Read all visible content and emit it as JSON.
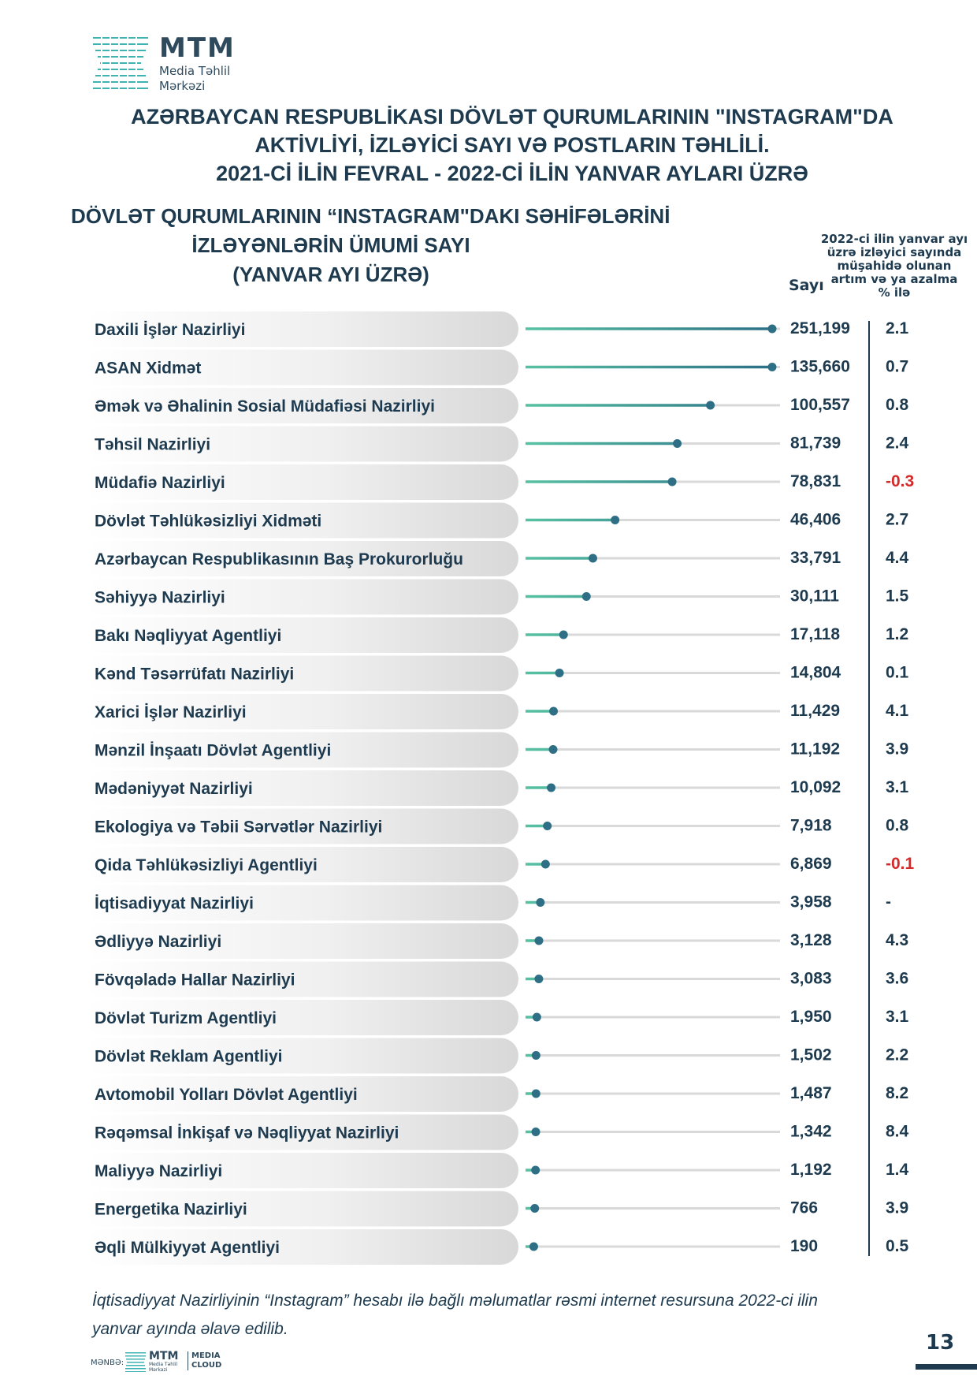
{
  "logo": {
    "title": "MTM",
    "subtitle_line1": "Media Təhlil",
    "subtitle_line2": "Mərkəzi"
  },
  "title": {
    "line1": "AZƏRBAYCAN RESPUBLİKASI DÖVLƏT QURUMLARININ \"INSTAGRAM\"DA",
    "line2": "AKTİVLİYİ, İZLƏYİCİ SAYI VƏ POSTLARIN TƏHLİLİ.",
    "line3": "2021-Cİ İLİN FEVRAL - 2022-Cİ İLİN YANVAR AYLARI ÜZRƏ"
  },
  "subtitle": {
    "line1": "DÖVLƏT QURUMLARININ “INSTAGRAM\"DAKI SƏHİFƏLƏRİNİ",
    "line2": "İZLƏYƏNLƏRİN ÜMUMİ SAYI",
    "line3": "(YANVAR AYI ÜZRƏ)"
  },
  "columns": {
    "count": "Sayı",
    "change_line1": "2022-ci ilin yanvar ayı",
    "change_line2": "üzrə izləyici sayında",
    "change_line3": "müşahidə olunan",
    "change_line4": "artım və ya azalma",
    "change_line5": "% ilə"
  },
  "chart_data": {
    "type": "bar",
    "categories": [
      "Daxili İşlər Nazirliyi",
      "ASAN Xidmət",
      "Əmək və Əhalinin Sosial Müdafiəsi Nazirliyi",
      "Təhsil Nazirliyi",
      "Müdafiə Nazirliyi",
      "Dövlət Təhlükəsizliyi Xidməti",
      "Azərbaycan Respublikasının Baş Prokurorluğu",
      "Səhiyyə Nazirliyi",
      "Bakı Nəqliyyat Agentliyi",
      "Kənd Təsərrüfatı Nazirliyi",
      "Xarici İşlər Nazirliyi",
      "Mənzil İnşaatı Dövlət Agentliyi",
      "Mədəniyyət Nazirliyi",
      "Ekologiya və Təbii Sərvətlər Nazirliyi",
      "Qida Təhlükəsizliyi Agentliyi",
      "İqtisadiyyat Nazirliyi",
      "Ədliyyə Nazirliyi",
      "Fövqəladə Hallar Nazirliyi",
      "Dövlət Turizm Agentliyi",
      "Dövlət Reklam Agentliyi",
      "Avtomobil Yolları Dövlət Agentliyi",
      "Rəqəmsal İnkişaf və Nəqliyyat Nazirliyi",
      "Maliyyə Nazirliyi",
      "Energetika Nazirliyi",
      "Əqli Mülkiyyət Agentliyi"
    ],
    "values": [
      251199,
      135660,
      100557,
      81739,
      78831,
      46406,
      33791,
      30111,
      17118,
      14804,
      11429,
      11192,
      10092,
      7918,
      6869,
      3958,
      3128,
      3083,
      1950,
      1502,
      1487,
      1342,
      1192,
      766,
      190
    ],
    "value_labels": [
      "251,199",
      "135,660",
      "100,557",
      "81,739",
      "78,831",
      "46,406",
      "33,791",
      "30,111",
      "17,118",
      "14,804",
      "11,429",
      "11,192",
      "10,092",
      "7,918",
      "6,869",
      "3,958",
      "3,128",
      "3,083",
      "1,950",
      "1,502",
      "1,487",
      "1,342",
      "1,192",
      "766",
      "190"
    ],
    "change_labels": [
      "2.1",
      "0.7",
      "0.8",
      "2.4",
      "-0.3",
      "2.7",
      "4.4",
      "1.5",
      "1.2",
      "0.1",
      "4.1",
      "3.9",
      "3.1",
      "0.8",
      "-0.1",
      "-",
      "4.3",
      "3.6",
      "3.1",
      "2.2",
      "8.2",
      "8.4",
      "1.4",
      "3.9",
      "0.5"
    ],
    "style": "lollipop",
    "colors": {
      "line_start": "#57c1a2",
      "line_end": "#2c6f86",
      "dot": "#2e6f85",
      "track": "#d9d9d9",
      "negative": "#d42a2a",
      "text": "#1d3a4f"
    }
  },
  "note": {
    "line1": "İqtisadiyyat Nazirliyinin “Instagram” hesabı ilə bağlı məlumatlar rəsmi internet resursuna 2022-ci ilin",
    "line2": "yanvar ayında əlavə edilib."
  },
  "footer": {
    "source": "MƏNBƏ:",
    "title": "MTM",
    "sub": "Media Təhlil Mərkəzi",
    "cloud1": "MEDIA",
    "cloud2": "CLOUD"
  },
  "page_number": "13"
}
